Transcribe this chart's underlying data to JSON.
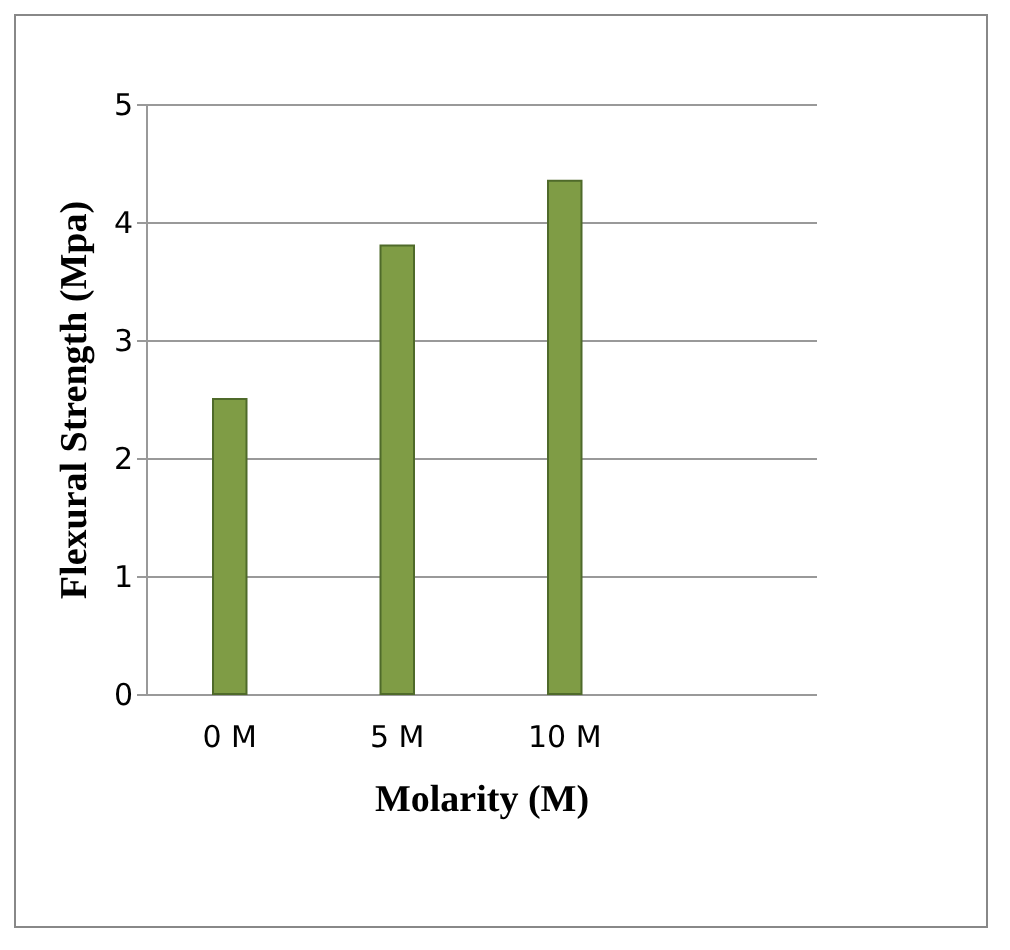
{
  "chart_data": {
    "type": "bar",
    "xlabel": "Molarity (M)",
    "ylabel": "Flexural Strength (Mpa)",
    "categories": [
      "0 M",
      "5 M",
      "10 M",
      null
    ],
    "values": [
      2.5,
      3.8,
      4.35,
      null
    ],
    "color": "#7f9c45",
    "ylim": [
      0,
      5
    ],
    "yticks": [
      0,
      1,
      2,
      3,
      4,
      5
    ],
    "grid": "y"
  }
}
